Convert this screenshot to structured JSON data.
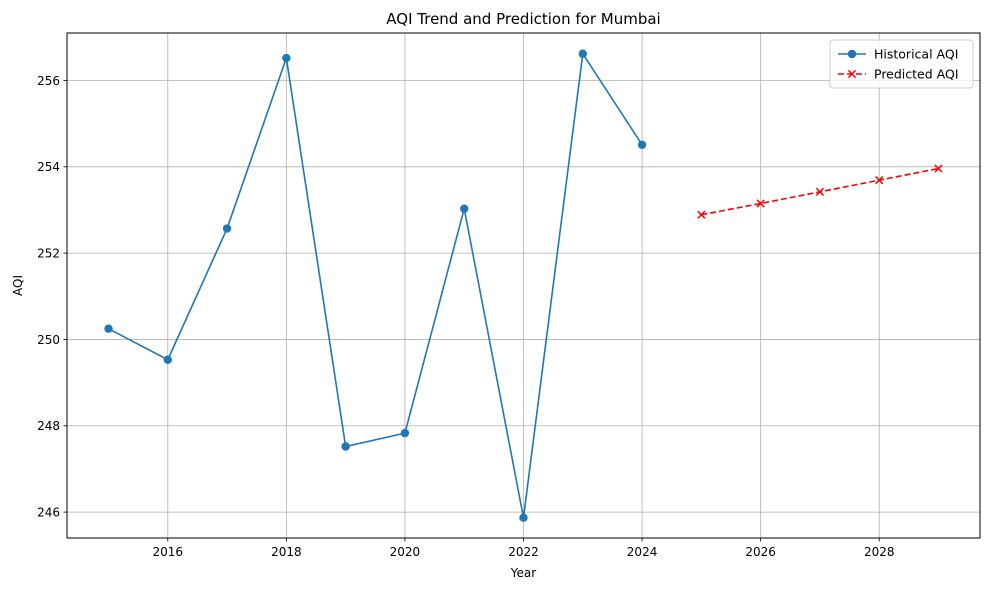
{
  "chart_data": {
    "type": "line",
    "title": "AQI Trend and Prediction for Mumbai",
    "xlabel": "Year",
    "ylabel": "AQI",
    "xlim": [
      2014.3,
      2029.7
    ],
    "ylim": [
      245.4,
      257.1
    ],
    "x_ticks": [
      2016,
      2018,
      2020,
      2022,
      2024,
      2026,
      2028
    ],
    "x_tick_labels": [
      "2016",
      "2018",
      "2020",
      "2022",
      "2024",
      "2026",
      "2028"
    ],
    "y_ticks": [
      246,
      248,
      250,
      252,
      254,
      256
    ],
    "y_tick_labels": [
      "246",
      "248",
      "250",
      "252",
      "254",
      "256"
    ],
    "grid": true,
    "legend_position": "top-right",
    "series": [
      {
        "name": "Historical AQI",
        "color": "#1f77b4",
        "line_style": "solid",
        "marker": "circle",
        "x": [
          2015,
          2016,
          2017,
          2018,
          2019,
          2020,
          2021,
          2022,
          2023,
          2024
        ],
        "values": [
          250.25,
          249.53,
          252.57,
          256.52,
          247.52,
          247.83,
          253.03,
          245.87,
          256.62,
          254.51
        ]
      },
      {
        "name": "Predicted AQI",
        "color": "#ff0000",
        "line_style": "dashed",
        "marker": "x",
        "x": [
          2025,
          2026,
          2027,
          2028,
          2029
        ],
        "values": [
          252.89,
          253.15,
          253.42,
          253.69,
          253.96
        ]
      }
    ]
  }
}
